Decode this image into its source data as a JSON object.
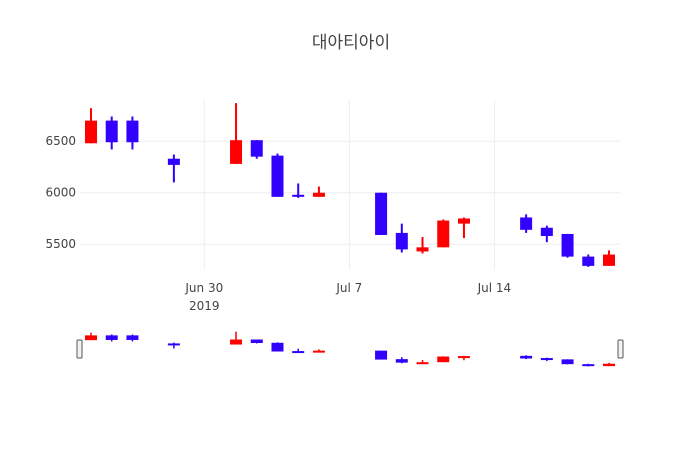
{
  "chart_data": {
    "type": "candlestick",
    "title": "대아티아이",
    "xlabel": "",
    "ylabel": "",
    "ylim": [
      5250,
      6900
    ],
    "y_ticks": [
      5500,
      6000,
      6500
    ],
    "y_tick_labels": [
      "5500",
      "6000",
      "6500"
    ],
    "x_ticks": [
      {
        "date": "2019-06-30",
        "label": "Jun 30",
        "sublabel": "2019"
      },
      {
        "date": "2019-07-07",
        "label": "Jul 7",
        "sublabel": ""
      },
      {
        "date": "2019-07-14",
        "label": "Jul 14",
        "sublabel": ""
      }
    ],
    "x_range": [
      "2019-06-24",
      "2019-07-20"
    ],
    "grid": true,
    "increasing_color": "#ff0000",
    "decreasing_color": "#3100ff",
    "range_slider": true,
    "candles": [
      {
        "date": "2019-06-24",
        "open": 6480,
        "high": 6820,
        "low": 6480,
        "close": 6700
      },
      {
        "date": "2019-06-25",
        "open": 6700,
        "high": 6740,
        "low": 6420,
        "close": 6490
      },
      {
        "date": "2019-06-26",
        "open": 6700,
        "high": 6740,
        "low": 6420,
        "close": 6490
      },
      {
        "date": "2019-06-28",
        "open": 6330,
        "high": 6370,
        "low": 6100,
        "close": 6270
      },
      {
        "date": "2019-07-01",
        "open": 6280,
        "high": 6870,
        "low": 6280,
        "close": 6510
      },
      {
        "date": "2019-07-02",
        "open": 6510,
        "high": 6510,
        "low": 6330,
        "close": 6350
      },
      {
        "date": "2019-07-03",
        "open": 6360,
        "high": 6380,
        "low": 5960,
        "close": 5960
      },
      {
        "date": "2019-07-04",
        "open": 5980,
        "high": 6090,
        "low": 5950,
        "close": 5960
      },
      {
        "date": "2019-07-05",
        "open": 5960,
        "high": 6060,
        "low": 5960,
        "close": 6000
      },
      {
        "date": "2019-07-08",
        "open": 6000,
        "high": 6000,
        "low": 5590,
        "close": 5590
      },
      {
        "date": "2019-07-09",
        "open": 5610,
        "high": 5700,
        "low": 5420,
        "close": 5450
      },
      {
        "date": "2019-07-10",
        "open": 5430,
        "high": 5570,
        "low": 5410,
        "close": 5470
      },
      {
        "date": "2019-07-11",
        "open": 5470,
        "high": 5740,
        "low": 5470,
        "close": 5730
      },
      {
        "date": "2019-07-12",
        "open": 5700,
        "high": 5760,
        "low": 5560,
        "close": 5750
      },
      {
        "date": "2019-07-15",
        "open": 5760,
        "high": 5790,
        "low": 5610,
        "close": 5640
      },
      {
        "date": "2019-07-16",
        "open": 5660,
        "high": 5680,
        "low": 5520,
        "close": 5580
      },
      {
        "date": "2019-07-17",
        "open": 5600,
        "high": 5600,
        "low": 5370,
        "close": 5380
      },
      {
        "date": "2019-07-18",
        "open": 5380,
        "high": 5400,
        "low": 5280,
        "close": 5290
      },
      {
        "date": "2019-07-19",
        "open": 5290,
        "high": 5440,
        "low": 5290,
        "close": 5400
      }
    ]
  }
}
